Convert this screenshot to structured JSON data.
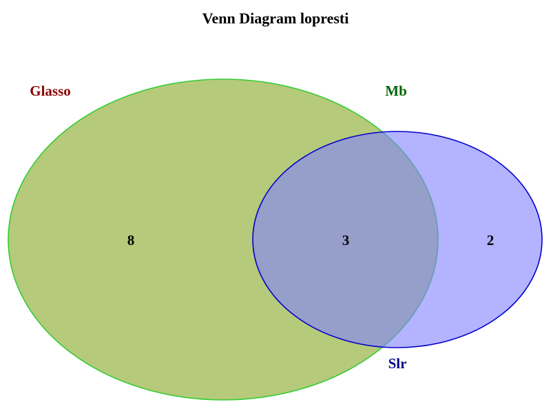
{
  "title": "Venn Diagram lopresti",
  "sets": [
    {
      "name": "Glasso",
      "label_color": "#8b0000",
      "fill_color": "#9ab548",
      "fill_opacity": 0.72,
      "stroke_color": "#33cc33"
    },
    {
      "name": "Mb",
      "label_color": "#006400",
      "fill_color": "#9ab548",
      "fill_opacity": 0.0,
      "stroke_color": "#33cc33"
    },
    {
      "name": "Slr",
      "label_color": "#00008b",
      "fill_color": "#8080ff",
      "fill_opacity": 0.6,
      "stroke_color": "#0000cc"
    }
  ],
  "regions": {
    "left_only": "8",
    "overlap": "3",
    "right_only": "2"
  }
}
